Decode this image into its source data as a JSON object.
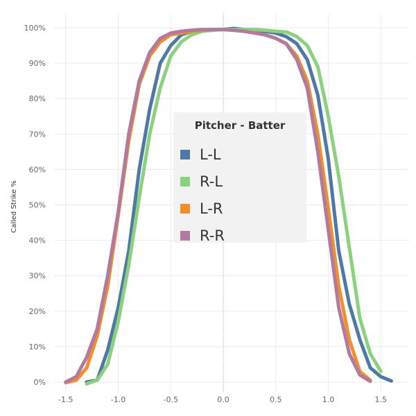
{
  "chart_data": {
    "type": "line",
    "title": "",
    "xlabel": "",
    "ylabel": "Called Strike %",
    "xlim": [
      -1.65,
      1.75
    ],
    "ylim": [
      0,
      100
    ],
    "x_ticks": [
      "-1.5",
      "-1.0",
      "-0.5",
      "0.0",
      "0.5",
      "1.0",
      "1.5"
    ],
    "y_ticks": [
      "0%",
      "10%",
      "20%",
      "30%",
      "40%",
      "50%",
      "60%",
      "70%",
      "80%",
      "90%",
      "100%"
    ],
    "grid": true,
    "reference_line": {
      "x": 0,
      "style": "dotted"
    },
    "legend": {
      "title": "Pitcher - Batter",
      "placement": "center",
      "entries": [
        "L-L",
        "R-L",
        "L-R",
        "R-R"
      ]
    },
    "series": [
      {
        "name": "L-L",
        "color": "#4e79a7",
        "x": [
          -1.3,
          -1.2,
          -1.1,
          -1.0,
          -0.9,
          -0.8,
          -0.7,
          -0.6,
          -0.5,
          -0.4,
          -0.3,
          -0.2,
          -0.1,
          0.0,
          0.1,
          0.2,
          0.3,
          0.4,
          0.5,
          0.6,
          0.7,
          0.8,
          0.9,
          1.0,
          1.1,
          1.2,
          1.3,
          1.4,
          1.5,
          1.6
        ],
        "y": [
          0,
          0.5,
          9,
          21,
          37,
          60,
          77,
          90,
          95,
          98,
          99,
          99.3,
          99.5,
          99.5,
          99.8,
          99.5,
          99.2,
          99,
          98.5,
          97.5,
          95.5,
          91,
          81,
          63,
          37,
          22,
          12,
          4,
          1.5,
          0.3
        ]
      },
      {
        "name": "R-L",
        "color": "#8cd17d",
        "x": [
          -1.3,
          -1.2,
          -1.1,
          -1.0,
          -0.9,
          -0.8,
          -0.7,
          -0.6,
          -0.5,
          -0.4,
          -0.3,
          -0.2,
          -0.1,
          0.0,
          0.1,
          0.2,
          0.3,
          0.4,
          0.5,
          0.6,
          0.7,
          0.8,
          0.9,
          1.0,
          1.1,
          1.2,
          1.3,
          1.4,
          1.5
        ],
        "y": [
          -0.5,
          0.5,
          5,
          17,
          33,
          52,
          70,
          83,
          92,
          96,
          98,
          99,
          99.3,
          99.5,
          99.5,
          99.5,
          99.5,
          99.3,
          99,
          98.8,
          97.5,
          95,
          89,
          75,
          58,
          38,
          18,
          8,
          3
        ]
      },
      {
        "name": "L-R",
        "color": "#f28e2b",
        "x": [
          -1.5,
          -1.4,
          -1.3,
          -1.2,
          -1.1,
          -1.0,
          -0.9,
          -0.8,
          -0.7,
          -0.6,
          -0.5,
          -0.4,
          -0.3,
          -0.2,
          -0.1,
          0.0,
          0.1,
          0.2,
          0.3,
          0.4,
          0.5,
          0.6,
          0.7,
          0.8,
          0.9,
          1.0,
          1.1,
          1.2,
          1.3,
          1.4
        ],
        "y": [
          -0.2,
          0.5,
          4,
          13,
          27,
          47,
          68,
          84,
          92,
          96,
          98,
          98.5,
          99,
          99.3,
          99.5,
          99.5,
          99.3,
          99,
          98.5,
          98,
          97,
          95.5,
          92,
          85,
          70,
          49,
          27,
          12,
          3,
          0.5
        ]
      },
      {
        "name": "R-R",
        "color": "#b07aa1",
        "x": [
          -1.5,
          -1.4,
          -1.3,
          -1.2,
          -1.1,
          -1.0,
          -0.9,
          -0.8,
          -0.7,
          -0.6,
          -0.5,
          -0.4,
          -0.3,
          -0.2,
          -0.1,
          0.0,
          0.1,
          0.2,
          0.3,
          0.4,
          0.5,
          0.6,
          0.7,
          0.8,
          0.9,
          1.0,
          1.1,
          1.2,
          1.3,
          1.4
        ],
        "y": [
          0,
          1.5,
          7,
          15,
          30,
          48,
          70,
          85,
          93,
          97,
          98.5,
          99,
          99.3,
          99.5,
          99.5,
          99.5,
          99.3,
          99,
          98.5,
          98,
          97,
          95.5,
          91,
          83,
          65,
          43,
          21,
          8,
          2,
          0.2
        ]
      }
    ]
  }
}
